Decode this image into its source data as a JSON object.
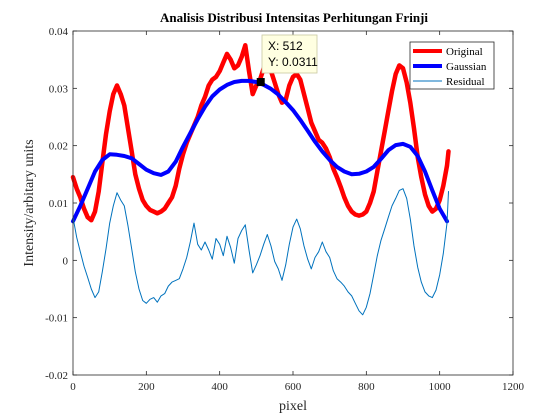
{
  "chart_data": {
    "type": "line",
    "title": "Analisis Distribusi Intensitas Perhitungan Frinji",
    "xlabel": "pixel",
    "ylabel": "Intensity/arbitary units",
    "xlim": [
      0,
      1200
    ],
    "ylim": [
      -0.02,
      0.04
    ],
    "xticks": [
      0,
      200,
      400,
      600,
      800,
      1000,
      1200
    ],
    "xtick_labels": [
      "0",
      "200",
      "400",
      "600",
      "800",
      "1000",
      "1200"
    ],
    "yticks": [
      -0.02,
      -0.01,
      0,
      0.01,
      0.02,
      0.03,
      0.04
    ],
    "ytick_labels": [
      "-0.02",
      "-0.01",
      "0",
      "0.01",
      "0.02",
      "0.03",
      "0.04"
    ],
    "grid": false,
    "legend_position": "top-right",
    "series": [
      {
        "name": "Original",
        "color": "#ff0000",
        "x": [
          0,
          10,
          20,
          30,
          40,
          50,
          60,
          70,
          80,
          90,
          100,
          110,
          120,
          130,
          140,
          150,
          160,
          170,
          180,
          190,
          200,
          210,
          220,
          230,
          240,
          250,
          260,
          270,
          280,
          290,
          300,
          310,
          320,
          330,
          340,
          350,
          360,
          370,
          380,
          390,
          400,
          410,
          420,
          430,
          440,
          450,
          460,
          470,
          480,
          490,
          500,
          510,
          520,
          530,
          540,
          550,
          560,
          570,
          580,
          590,
          600,
          610,
          620,
          630,
          640,
          650,
          660,
          670,
          680,
          690,
          700,
          710,
          720,
          730,
          740,
          750,
          760,
          770,
          780,
          790,
          800,
          810,
          820,
          830,
          840,
          850,
          860,
          870,
          880,
          890,
          900,
          910,
          920,
          930,
          940,
          950,
          960,
          970,
          980,
          990,
          1000,
          1010,
          1020,
          1024
        ],
        "y": [
          0.0145,
          0.0125,
          0.011,
          0.009,
          0.0075,
          0.007,
          0.0085,
          0.012,
          0.017,
          0.022,
          0.026,
          0.029,
          0.0305,
          0.029,
          0.027,
          0.023,
          0.019,
          0.015,
          0.0125,
          0.0105,
          0.0095,
          0.0088,
          0.0085,
          0.0082,
          0.0085,
          0.009,
          0.01,
          0.011,
          0.013,
          0.016,
          0.0185,
          0.0205,
          0.022,
          0.0235,
          0.025,
          0.027,
          0.0285,
          0.0305,
          0.0315,
          0.032,
          0.033,
          0.0345,
          0.036,
          0.035,
          0.0335,
          0.034,
          0.0355,
          0.0375,
          0.033,
          0.029,
          0.0305,
          0.0315,
          0.0335,
          0.035,
          0.033,
          0.031,
          0.029,
          0.0275,
          0.028,
          0.0305,
          0.032,
          0.0325,
          0.0315,
          0.029,
          0.0265,
          0.024,
          0.0225,
          0.021,
          0.0205,
          0.0195,
          0.018,
          0.016,
          0.0145,
          0.0128,
          0.011,
          0.0095,
          0.0085,
          0.008,
          0.0078,
          0.008,
          0.0085,
          0.01,
          0.012,
          0.0155,
          0.019,
          0.0225,
          0.026,
          0.0295,
          0.0325,
          0.034,
          0.0335,
          0.031,
          0.0275,
          0.023,
          0.018,
          0.0145,
          0.0115,
          0.0095,
          0.0085,
          0.009,
          0.0105,
          0.013,
          0.0165,
          0.019
        ]
      },
      {
        "name": "Gaussian",
        "color": "#0000ff",
        "x": [
          0,
          20,
          40,
          60,
          80,
          100,
          120,
          140,
          160,
          180,
          200,
          220,
          240,
          260,
          280,
          300,
          320,
          340,
          360,
          380,
          400,
          420,
          440,
          460,
          480,
          500,
          520,
          540,
          560,
          580,
          600,
          620,
          640,
          660,
          680,
          700,
          720,
          740,
          760,
          780,
          800,
          820,
          840,
          860,
          880,
          900,
          920,
          940,
          960,
          980,
          1000,
          1020
        ],
        "y": [
          0.0068,
          0.0095,
          0.0125,
          0.0155,
          0.0175,
          0.0185,
          0.0184,
          0.0182,
          0.0178,
          0.0168,
          0.0158,
          0.0152,
          0.0149,
          0.0155,
          0.0172,
          0.0198,
          0.0222,
          0.0246,
          0.0268,
          0.0286,
          0.0298,
          0.0306,
          0.0311,
          0.0313,
          0.0313,
          0.0311,
          0.0306,
          0.0299,
          0.0289,
          0.0276,
          0.0262,
          0.0245,
          0.0226,
          0.0207,
          0.019,
          0.0175,
          0.0163,
          0.0155,
          0.015,
          0.0151,
          0.0155,
          0.0163,
          0.0177,
          0.0192,
          0.0201,
          0.0203,
          0.0198,
          0.0182,
          0.0155,
          0.0122,
          0.009,
          0.0068
        ]
      },
      {
        "name": "Residual",
        "color": "#0072bd",
        "x": [
          0,
          10,
          20,
          30,
          40,
          50,
          60,
          70,
          80,
          90,
          100,
          110,
          120,
          130,
          140,
          150,
          160,
          170,
          180,
          190,
          200,
          210,
          220,
          230,
          240,
          250,
          260,
          270,
          280,
          290,
          300,
          310,
          320,
          330,
          340,
          350,
          360,
          370,
          380,
          390,
          400,
          410,
          420,
          430,
          440,
          450,
          460,
          470,
          480,
          490,
          500,
          510,
          520,
          530,
          540,
          550,
          560,
          570,
          580,
          590,
          600,
          610,
          620,
          630,
          640,
          650,
          660,
          670,
          680,
          690,
          700,
          710,
          720,
          730,
          740,
          750,
          760,
          770,
          780,
          790,
          800,
          810,
          820,
          830,
          840,
          850,
          860,
          870,
          880,
          890,
          900,
          910,
          920,
          930,
          940,
          950,
          960,
          970,
          980,
          990,
          1000,
          1010,
          1020,
          1024
        ],
        "y": [
          0.0075,
          0.004,
          0.0015,
          -0.001,
          -0.003,
          -0.005,
          -0.0065,
          -0.0055,
          -0.002,
          0.002,
          0.0065,
          0.0095,
          0.0118,
          0.0105,
          0.0095,
          0.006,
          0.002,
          -0.002,
          -0.005,
          -0.007,
          -0.0075,
          -0.0068,
          -0.0065,
          -0.0073,
          -0.0062,
          -0.0058,
          -0.0045,
          -0.0038,
          -0.0035,
          -0.0032,
          -0.0015,
          0.0005,
          0.0032,
          0.0065,
          0.0028,
          0.0018,
          0.0032,
          0.0018,
          0.0002,
          0.0038,
          0.0028,
          0.0008,
          0.0042,
          0.0022,
          -0.0005,
          0.0038,
          0.0052,
          0.0062,
          0.0018,
          -0.0022,
          -0.0008,
          0.0008,
          0.0028,
          0.0045,
          0.0025,
          -0.0002,
          -0.0015,
          -0.0035,
          -0.0008,
          0.0028,
          0.0058,
          0.0072,
          0.0055,
          0.0025,
          0.0002,
          -0.0015,
          0.0005,
          0.0015,
          0.0032,
          0.0015,
          0.0005,
          -0.0018,
          -0.0032,
          -0.0038,
          -0.0045,
          -0.0055,
          -0.0062,
          -0.0075,
          -0.0088,
          -0.0095,
          -0.0082,
          -0.0058,
          -0.0025,
          0.0008,
          0.0035,
          0.0055,
          0.0075,
          0.0095,
          0.0108,
          0.0122,
          0.0125,
          0.0108,
          0.0072,
          0.0025,
          -0.0012,
          -0.0038,
          -0.0055,
          -0.0062,
          -0.0065,
          -0.0052,
          -0.0025,
          0.0012,
          0.0065,
          0.012
        ]
      }
    ],
    "datatip": {
      "x_label": "X: 512",
      "y_label": "Y: 0.0311",
      "x": 512,
      "y": 0.0311
    }
  }
}
